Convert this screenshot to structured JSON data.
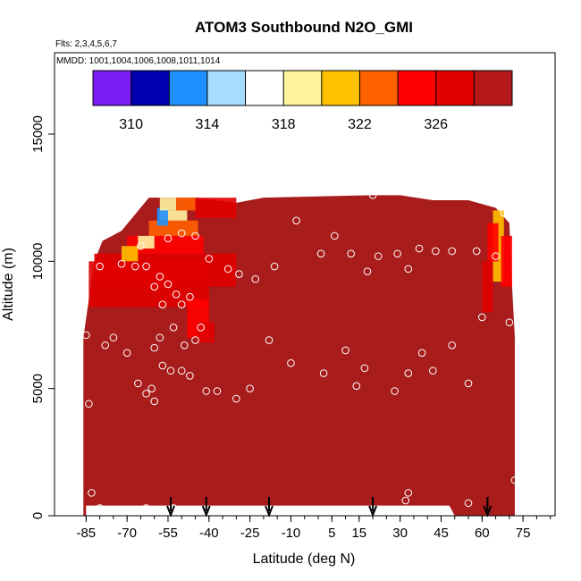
{
  "chart_data": {
    "type": "heatmap",
    "title": "ATOM3 Southbound N2O_GMI",
    "flights_note": "Flts: 2,3,4,5,6,7",
    "dates_note": "MMDD: 1001,1004,1006,1008,1011,1014",
    "xlabel": "Latitude (deg N)",
    "ylabel": "Altitude (m)",
    "xlim": [
      -90,
      90
    ],
    "ylim": [
      0,
      17500
    ],
    "x_ticks": [
      -85,
      -70,
      -55,
      -40,
      -25,
      -10,
      5,
      15,
      30,
      45,
      60,
      75
    ],
    "y_ticks": [
      0,
      5000,
      10000,
      15000
    ],
    "colorbar": {
      "range": [
        308,
        330
      ],
      "ticks": [
        310,
        314,
        318,
        322,
        326
      ],
      "colors": [
        "#7a1cf5",
        "#0000b0",
        "#1e90ff",
        "#a6dcff",
        "#ffffff",
        "#fff4a0",
        "#ffc000",
        "#ff6000",
        "#ff0000",
        "#e00000",
        "#b41818"
      ]
    },
    "field": {
      "background_value": 329,
      "background_color": "#a81c1c",
      "low_value_region_note": "Lower N2O values (312-328) near 10000-12500 m between -60 and -42 deg N and near 10000-12000 m at 65-70 deg N"
    },
    "observations": [
      {
        "lat": -63,
        "alt": 9800
      },
      {
        "lat": -60,
        "alt": 9000
      },
      {
        "lat": -58,
        "alt": 9400
      },
      {
        "lat": -55,
        "alt": 9100
      },
      {
        "lat": -57,
        "alt": 8300
      },
      {
        "lat": -52,
        "alt": 8700
      },
      {
        "lat": -50,
        "alt": 8300
      },
      {
        "lat": -47,
        "alt": 8600
      },
      {
        "lat": -60,
        "alt": 6600
      },
      {
        "lat": -58,
        "alt": 7000
      },
      {
        "lat": -53,
        "alt": 7400
      },
      {
        "lat": -49,
        "alt": 6700
      },
      {
        "lat": -45,
        "alt": 6900
      },
      {
        "lat": -43,
        "alt": 7400
      },
      {
        "lat": -61,
        "alt": 5000
      },
      {
        "lat": -57,
        "alt": 5900
      },
      {
        "lat": -54,
        "alt": 5700
      },
      {
        "lat": -50,
        "alt": 5700
      },
      {
        "lat": -47,
        "alt": 5500
      },
      {
        "lat": -41,
        "alt": 4900
      },
      {
        "lat": -37,
        "alt": 4900
      },
      {
        "lat": -30,
        "alt": 4600
      },
      {
        "lat": -25,
        "alt": 5000
      },
      {
        "lat": -18,
        "alt": 6900
      },
      {
        "lat": -10,
        "alt": 6000
      },
      {
        "lat": 2,
        "alt": 5600
      },
      {
        "lat": 10,
        "alt": 6500
      },
      {
        "lat": 14,
        "alt": 5100
      },
      {
        "lat": 17,
        "alt": 5800
      },
      {
        "lat": 28,
        "alt": 4900
      },
      {
        "lat": 33,
        "alt": 5600
      },
      {
        "lat": 38,
        "alt": 6400
      },
      {
        "lat": 42,
        "alt": 5700
      },
      {
        "lat": 49,
        "alt": 6700
      },
      {
        "lat": 55,
        "alt": 5200
      },
      {
        "lat": 60,
        "alt": 7800
      },
      {
        "lat": -75,
        "alt": 7000
      },
      {
        "lat": -78,
        "alt": 6700
      },
      {
        "lat": -70,
        "alt": 6400
      },
      {
        "lat": -66,
        "alt": 5200
      },
      {
        "lat": -63,
        "alt": 4800
      },
      {
        "lat": -60,
        "alt": 4500
      },
      {
        "lat": -80,
        "alt": 9800
      },
      {
        "lat": -72,
        "alt": 9900
      },
      {
        "lat": -67,
        "alt": 9800
      },
      {
        "lat": -65,
        "alt": 10600
      },
      {
        "lat": -55,
        "alt": 10900
      },
      {
        "lat": -50,
        "alt": 11100
      },
      {
        "lat": -45,
        "alt": 11000
      },
      {
        "lat": -40,
        "alt": 10100
      },
      {
        "lat": -33,
        "alt": 9700
      },
      {
        "lat": -29,
        "alt": 9500
      },
      {
        "lat": -23,
        "alt": 9300
      },
      {
        "lat": -16,
        "alt": 9800
      },
      {
        "lat": -8,
        "alt": 11600
      },
      {
        "lat": 1,
        "alt": 10300
      },
      {
        "lat": 6,
        "alt": 11000
      },
      {
        "lat": 12,
        "alt": 10300
      },
      {
        "lat": 18,
        "alt": 9600
      },
      {
        "lat": 22,
        "alt": 10200
      },
      {
        "lat": 29,
        "alt": 10300
      },
      {
        "lat": 33,
        "alt": 9700
      },
      {
        "lat": 37,
        "alt": 10500
      },
      {
        "lat": 43,
        "alt": 10400
      },
      {
        "lat": 49,
        "alt": 10400
      },
      {
        "lat": 58,
        "alt": 10400
      },
      {
        "lat": 65,
        "alt": 10200
      },
      {
        "lat": 68,
        "alt": 11900
      },
      {
        "lat": 20,
        "alt": 12600
      },
      {
        "lat": -85,
        "alt": 7100
      },
      {
        "lat": -84,
        "alt": 4400
      },
      {
        "lat": -83,
        "alt": 900
      },
      {
        "lat": 70,
        "alt": 7600
      },
      {
        "lat": 72,
        "alt": 1400
      },
      {
        "lat": -80,
        "alt": 300
      },
      {
        "lat": -70,
        "alt": 200
      },
      {
        "lat": -63,
        "alt": 300
      },
      {
        "lat": -57,
        "alt": 200
      },
      {
        "lat": -53,
        "alt": 300
      },
      {
        "lat": -45,
        "alt": 200
      },
      {
        "lat": -30,
        "alt": 200
      },
      {
        "lat": -20,
        "alt": 200
      },
      {
        "lat": -6,
        "alt": 200
      },
      {
        "lat": 4,
        "alt": 200
      },
      {
        "lat": 14,
        "alt": 200
      },
      {
        "lat": 23,
        "alt": 200
      },
      {
        "lat": 33,
        "alt": 200
      },
      {
        "lat": 40,
        "alt": 200
      },
      {
        "lat": 46,
        "alt": 200
      },
      {
        "lat": 55,
        "alt": 500
      },
      {
        "lat": 33,
        "alt": 900
      },
      {
        "lat": 32,
        "alt": 600
      }
    ],
    "surface_arrows": [
      -54,
      -41,
      -18,
      20,
      62
    ]
  }
}
